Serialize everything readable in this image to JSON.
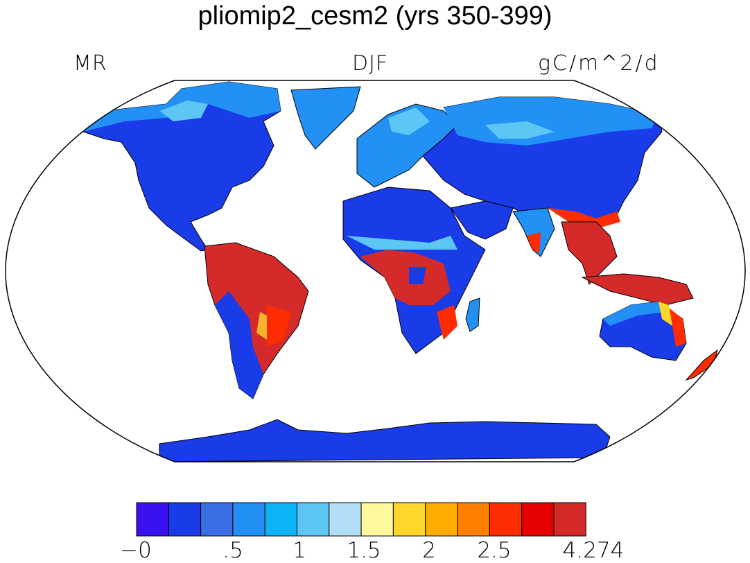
{
  "title": "pliomip2_cesm2 (yrs 350-399)",
  "labels": {
    "left": "MR",
    "center": "DJF",
    "right": "gC/m^2/d"
  },
  "colors": {
    "ocean": "#ffffff",
    "coast": "#000000",
    "levels": [
      "#3a10f0",
      "#1a3be8",
      "#3a6ee6",
      "#2290f5",
      "#0db4f5",
      "#5cc6f5",
      "#b2dff5",
      "#fff99e",
      "#ffd629",
      "#ffad00",
      "#ff7f00",
      "#ff2c00",
      "#e60000",
      "#d42a2a"
    ]
  },
  "colorbar": {
    "tick_labels": [
      "−0",
      ".5",
      "1",
      "1.5",
      "2",
      "2.5",
      "4.274"
    ]
  },
  "map_regions": [
    "north-america",
    "greenland",
    "south-america",
    "africa",
    "europe",
    "asia",
    "india",
    "arabia",
    "southeast-asia",
    "indonesia",
    "australia",
    "new-zealand",
    "madagascar",
    "antarctica"
  ]
}
